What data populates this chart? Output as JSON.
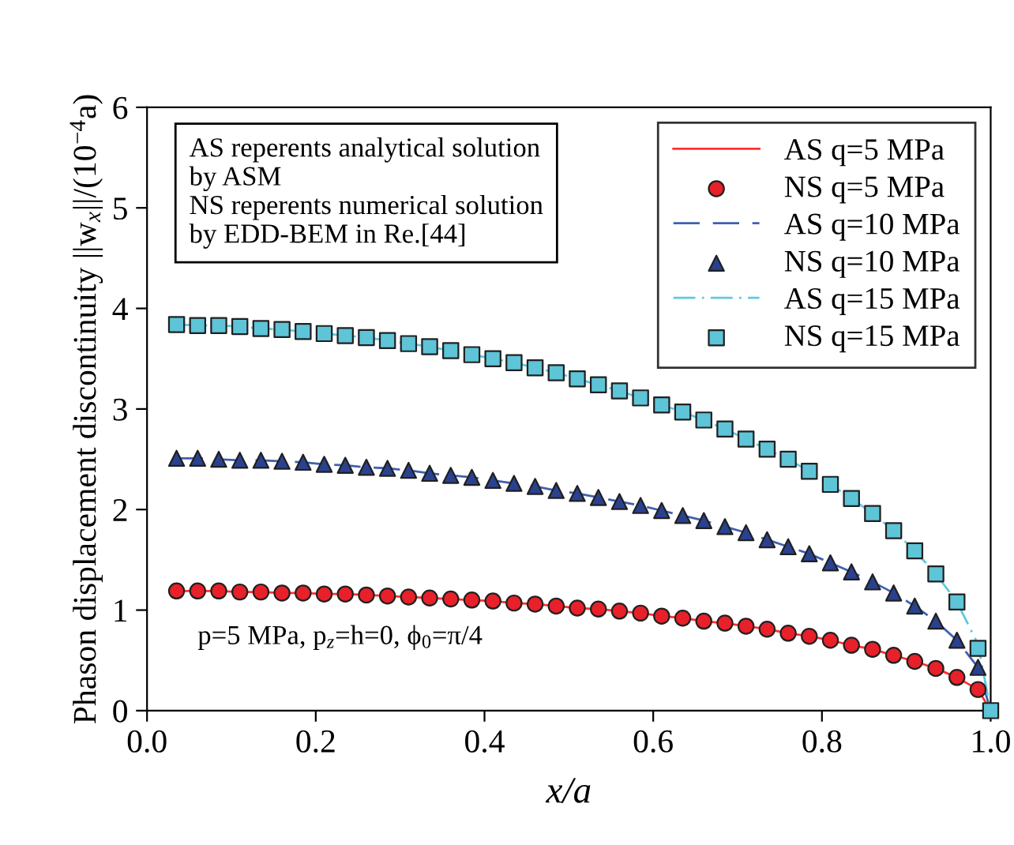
{
  "chart_data": {
    "type": "line",
    "xlabel": "x/a",
    "ylabel": "Phason displacement discontinuity ||w$_{x}$||/(10$^{−4}$a)",
    "x": [
      0.035,
      0.06,
      0.085,
      0.11,
      0.135,
      0.16,
      0.185,
      0.21,
      0.235,
      0.26,
      0.285,
      0.31,
      0.335,
      0.36,
      0.385,
      0.41,
      0.435,
      0.46,
      0.485,
      0.51,
      0.535,
      0.56,
      0.585,
      0.61,
      0.635,
      0.66,
      0.685,
      0.71,
      0.735,
      0.76,
      0.785,
      0.81,
      0.835,
      0.86,
      0.885,
      0.91,
      0.935,
      0.96,
      0.985,
      1.0
    ],
    "xlim": [
      0,
      1
    ],
    "xticks": [
      {
        "value": 0,
        "label": "0.0"
      },
      0.2,
      0.4,
      0.6,
      0.8,
      {
        "value": 1,
        "label": "1.0"
      }
    ],
    "ylim": [
      0,
      6
    ],
    "yticks": [
      0,
      1,
      2,
      3,
      4,
      5,
      6
    ],
    "grid": false,
    "legend": "top right",
    "annotations": [
      "AS reperents analytical solution\nby ASM\nNS reperents numerical solution\nby EDD-BEM in Re.[44]",
      "p=5 MPa, p$_{z}$=h=0, ϕ$_{0}$=π/4"
    ],
    "series": [
      {
        "name": "AS q=5 MPa",
        "color": "#ff3030",
        "line_style": "solid",
        "marker": "none",
        "values": [
          1.19,
          1.19,
          1.19,
          1.18,
          1.18,
          1.17,
          1.17,
          1.16,
          1.16,
          1.15,
          1.14,
          1.13,
          1.12,
          1.11,
          1.1,
          1.09,
          1.07,
          1.06,
          1.04,
          1.02,
          1.01,
          0.99,
          0.97,
          0.94,
          0.92,
          0.89,
          0.87,
          0.84,
          0.81,
          0.77,
          0.74,
          0.7,
          0.65,
          0.61,
          0.55,
          0.49,
          0.42,
          0.33,
          0.21,
          0
        ]
      },
      {
        "name": "NS q=5 MPa",
        "type": "scatter",
        "color": "#e8202a",
        "marker": "circle",
        "values": [
          1.19,
          1.19,
          1.19,
          1.18,
          1.18,
          1.17,
          1.17,
          1.16,
          1.16,
          1.15,
          1.14,
          1.13,
          1.12,
          1.11,
          1.1,
          1.09,
          1.07,
          1.06,
          1.04,
          1.02,
          1.01,
          0.99,
          0.97,
          0.94,
          0.92,
          0.89,
          0.87,
          0.84,
          0.81,
          0.77,
          0.74,
          0.7,
          0.65,
          0.61,
          0.55,
          0.49,
          0.42,
          0.33,
          0.21,
          null
        ]
      },
      {
        "name": "AS q=10 MPa",
        "color": "#4060b0",
        "line_style": "dashed",
        "marker": "none",
        "values": [
          2.51,
          2.51,
          2.5,
          2.49,
          2.49,
          2.48,
          2.47,
          2.45,
          2.44,
          2.42,
          2.41,
          2.39,
          2.36,
          2.34,
          2.32,
          2.29,
          2.26,
          2.23,
          2.19,
          2.16,
          2.12,
          2.08,
          2.04,
          1.99,
          1.94,
          1.89,
          1.83,
          1.77,
          1.7,
          1.63,
          1.56,
          1.47,
          1.38,
          1.28,
          1.17,
          1.04,
          0.89,
          0.7,
          0.43,
          0
        ]
      },
      {
        "name": "NS q=10 MPa",
        "type": "scatter",
        "color": "#2a4190",
        "marker": "triangle",
        "values": [
          2.51,
          2.51,
          2.5,
          2.49,
          2.49,
          2.48,
          2.47,
          2.45,
          2.44,
          2.42,
          2.41,
          2.39,
          2.36,
          2.34,
          2.32,
          2.29,
          2.26,
          2.23,
          2.19,
          2.16,
          2.12,
          2.08,
          2.04,
          1.99,
          1.94,
          1.89,
          1.83,
          1.77,
          1.7,
          1.63,
          1.56,
          1.47,
          1.38,
          1.28,
          1.17,
          1.04,
          0.89,
          0.7,
          0.43,
          null
        ]
      },
      {
        "name": "AS q=15 MPa",
        "color": "#60c8e0",
        "line_style": "dashdot",
        "marker": "none",
        "values": [
          3.84,
          3.83,
          3.83,
          3.82,
          3.8,
          3.79,
          3.77,
          3.75,
          3.73,
          3.71,
          3.68,
          3.65,
          3.62,
          3.58,
          3.54,
          3.5,
          3.46,
          3.41,
          3.36,
          3.3,
          3.24,
          3.18,
          3.11,
          3.04,
          2.97,
          2.89,
          2.8,
          2.7,
          2.6,
          2.5,
          2.38,
          2.25,
          2.11,
          1.96,
          1.79,
          1.59,
          1.36,
          1.08,
          0.66,
          0
        ]
      },
      {
        "name": "NS q=15 MPa",
        "type": "scatter",
        "color": "#5ec4d8",
        "marker": "square",
        "values": [
          3.84,
          3.83,
          3.83,
          3.82,
          3.8,
          3.79,
          3.77,
          3.75,
          3.73,
          3.71,
          3.68,
          3.65,
          3.62,
          3.58,
          3.54,
          3.5,
          3.46,
          3.41,
          3.36,
          3.3,
          3.24,
          3.18,
          3.11,
          3.04,
          2.97,
          2.89,
          2.8,
          2.7,
          2.6,
          2.5,
          2.38,
          2.25,
          2.11,
          1.96,
          1.79,
          1.59,
          1.36,
          1.08,
          0.62,
          0
        ]
      }
    ]
  }
}
